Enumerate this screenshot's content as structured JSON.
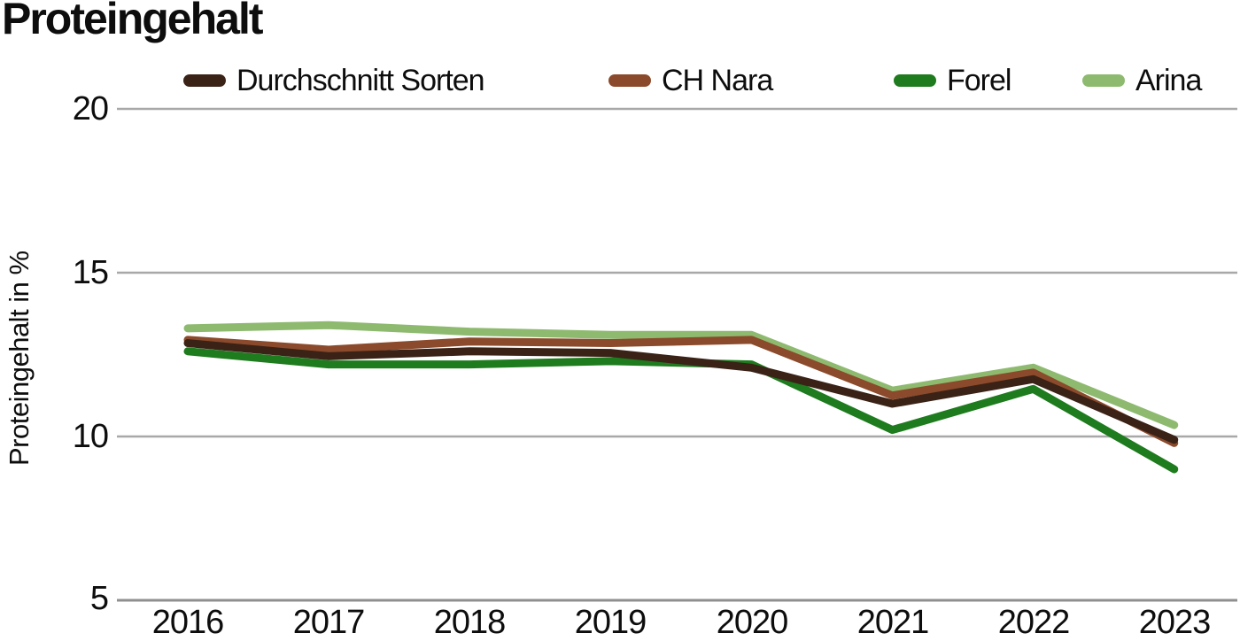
{
  "chart_data": {
    "type": "line",
    "title": "Proteingehalt",
    "ylabel": "Proteingehalt in %",
    "xlabel": "",
    "x_labels": [
      "2016",
      "2017",
      "2018",
      "2019",
      "2020",
      "2021",
      "2022",
      "2023"
    ],
    "y_ticks": [
      "20",
      "15",
      "10",
      "5"
    ],
    "ylim": [
      5,
      20
    ],
    "grid": "horizontal",
    "legend_position": "top",
    "background_color": "#ffffff",
    "grid_color": "#a8a8a8",
    "baseline_color": "#8f8f8f",
    "text_color": "#0d0d0d",
    "series": [
      {
        "name": "Durchschnitt Sorten",
        "color": "#3a2217",
        "values": [
          12.85,
          12.45,
          12.6,
          12.55,
          12.1,
          11.0,
          11.75,
          9.9
        ]
      },
      {
        "name": "CH Nara",
        "color": "#8b4a2b",
        "values": [
          12.95,
          12.65,
          12.9,
          12.85,
          12.95,
          11.25,
          11.95,
          9.8
        ]
      },
      {
        "name": "Forel",
        "color": "#1e7b1e",
        "values": [
          12.6,
          12.2,
          12.2,
          12.3,
          12.2,
          10.2,
          11.45,
          9.0
        ]
      },
      {
        "name": "Arina",
        "color": "#8eba70",
        "values": [
          13.3,
          13.4,
          13.2,
          13.1,
          13.1,
          11.4,
          12.1,
          10.35
        ]
      }
    ]
  }
}
